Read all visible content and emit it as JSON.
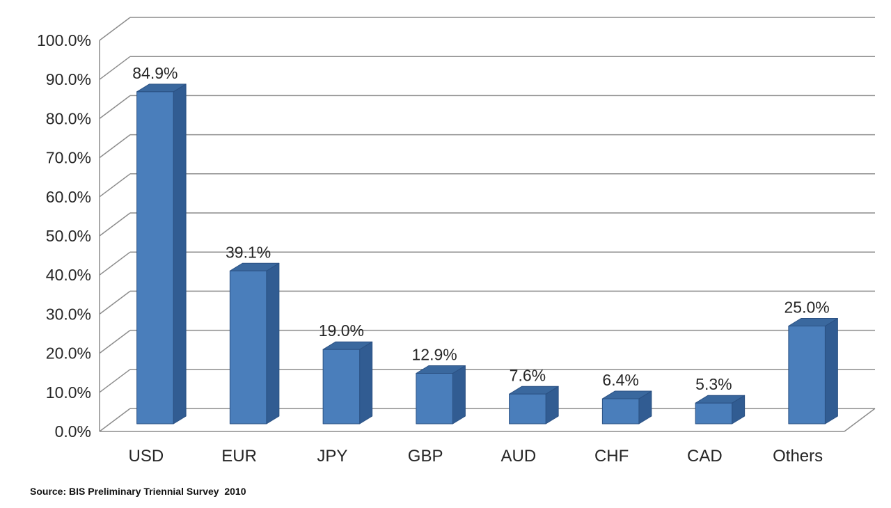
{
  "chart_data": {
    "type": "bar",
    "style": "3d-column",
    "title": "",
    "xlabel": "",
    "ylabel": "",
    "categories": [
      "USD",
      "EUR",
      "JPY",
      "GBP",
      "AUD",
      "CHF",
      "CAD",
      "Others"
    ],
    "values": [
      84.9,
      39.1,
      19.0,
      12.9,
      7.6,
      6.4,
      5.3,
      25.0
    ],
    "value_labels": [
      "84.9%",
      "39.1%",
      "19.0%",
      "12.9%",
      "7.6%",
      "6.4%",
      "5.3%",
      "25.0%"
    ],
    "ylim": [
      0,
      100
    ],
    "ytick_step": 10,
    "ytick_labels": [
      "0.0%",
      "10.0%",
      "20.0%",
      "30.0%",
      "40.0%",
      "50.0%",
      "60.0%",
      "70.0%",
      "80.0%",
      "90.0%",
      "100.0%"
    ],
    "grid": true,
    "legend": "none",
    "colors": {
      "bar_front": "#4A7EBB",
      "bar_top": "#3A689E",
      "bar_side": "#315C92",
      "bar_edge": "#2B5183",
      "gridline": "#8C8C8C",
      "text": "#262626",
      "background": "#FFFFFF"
    }
  },
  "footer": {
    "source_text": "Source: BIS Preliminary Triennial Survey  2010"
  }
}
